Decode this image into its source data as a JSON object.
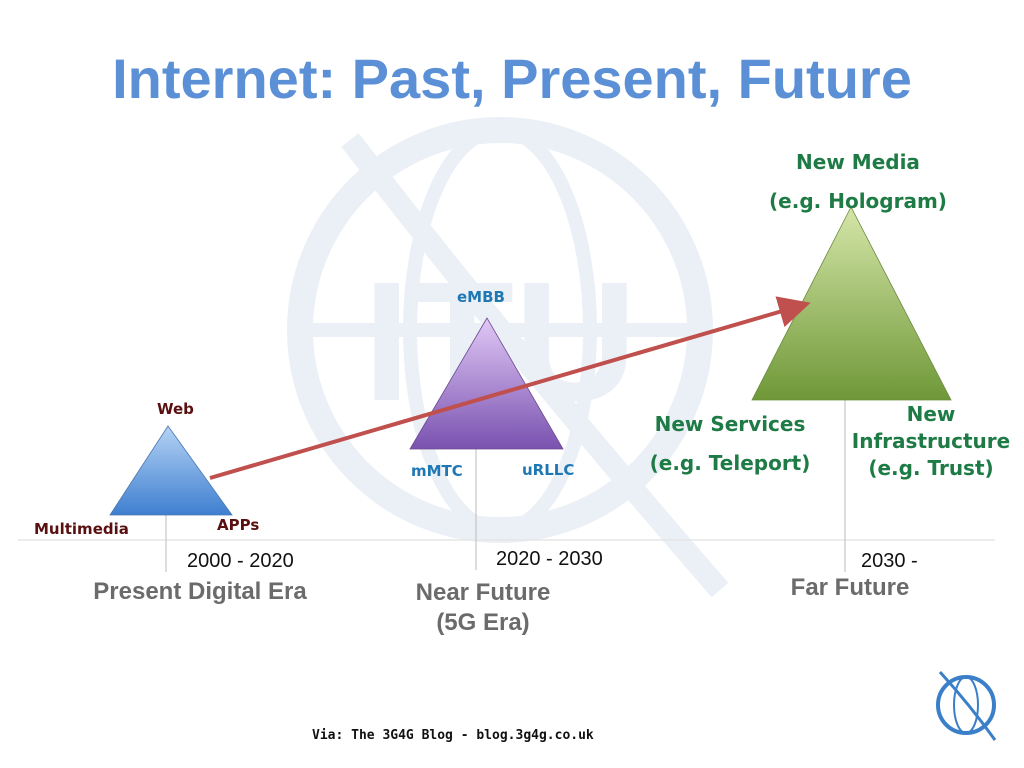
{
  "title": "Internet: Past, Present, Future",
  "eras": [
    {
      "period": "2000 - 2020",
      "name": "Present Digital Era",
      "color": "#5b9be0",
      "labels": {
        "top": "Web",
        "left": "Multimedia",
        "right": "APPs"
      }
    },
    {
      "period": "2020 - 2030",
      "name_line1": "Near Future",
      "name_line2": "(5G Era)",
      "color": "#9b72c9",
      "labels": {
        "top": "eMBB",
        "left": "mMTC",
        "right": "uRLLC"
      }
    },
    {
      "period": "2030 -",
      "name": "Far Future",
      "color": "#8fb35a",
      "labels": {
        "top_line1": "New Media",
        "top_line2": "(e.g. Hologram)",
        "left_line1": "New Services",
        "left_line2": "(e.g. Teleport)",
        "right_line1": "New",
        "right_line2": "Infrastructure",
        "right_line3": "(e.g. Trust)"
      }
    }
  ],
  "arrow_color": "#c0504d",
  "watermark": "ITU",
  "logo": "ITU",
  "credit": "Via: The 3G4G Blog - blog.3g4g.co.uk"
}
